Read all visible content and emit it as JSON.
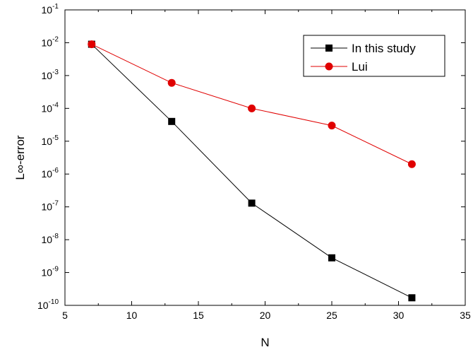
{
  "chart_data": {
    "type": "line",
    "title": "",
    "xlabel": "N",
    "ylabel": "L∞-error",
    "x": [
      7,
      13,
      19,
      25,
      31
    ],
    "xlim": [
      5,
      35
    ],
    "x_ticks": [
      "5",
      "10",
      "15",
      "20",
      "25",
      "30",
      "35"
    ],
    "x_tick_values": [
      5,
      10,
      15,
      20,
      25,
      30,
      35
    ],
    "ylim": [
      1e-10,
      0.1
    ],
    "yscale": "log",
    "y_tick_exponents": [
      "-10",
      "-9",
      "-8",
      "-7",
      "-6",
      "-5",
      "-4",
      "-3",
      "-2",
      "-1"
    ],
    "y_tick_base": "10",
    "grid": false,
    "legend_position": "top-right",
    "series": [
      {
        "name": "In this study",
        "values": [
          0.009,
          4e-05,
          1.3e-07,
          2.8e-09,
          1.7e-10
        ],
        "color": "#000000",
        "marker": "square"
      },
      {
        "name": "Lui",
        "values": [
          0.009,
          0.0006,
          0.0001,
          3e-05,
          2e-06
        ],
        "color": "#e00000",
        "marker": "circle"
      }
    ]
  }
}
